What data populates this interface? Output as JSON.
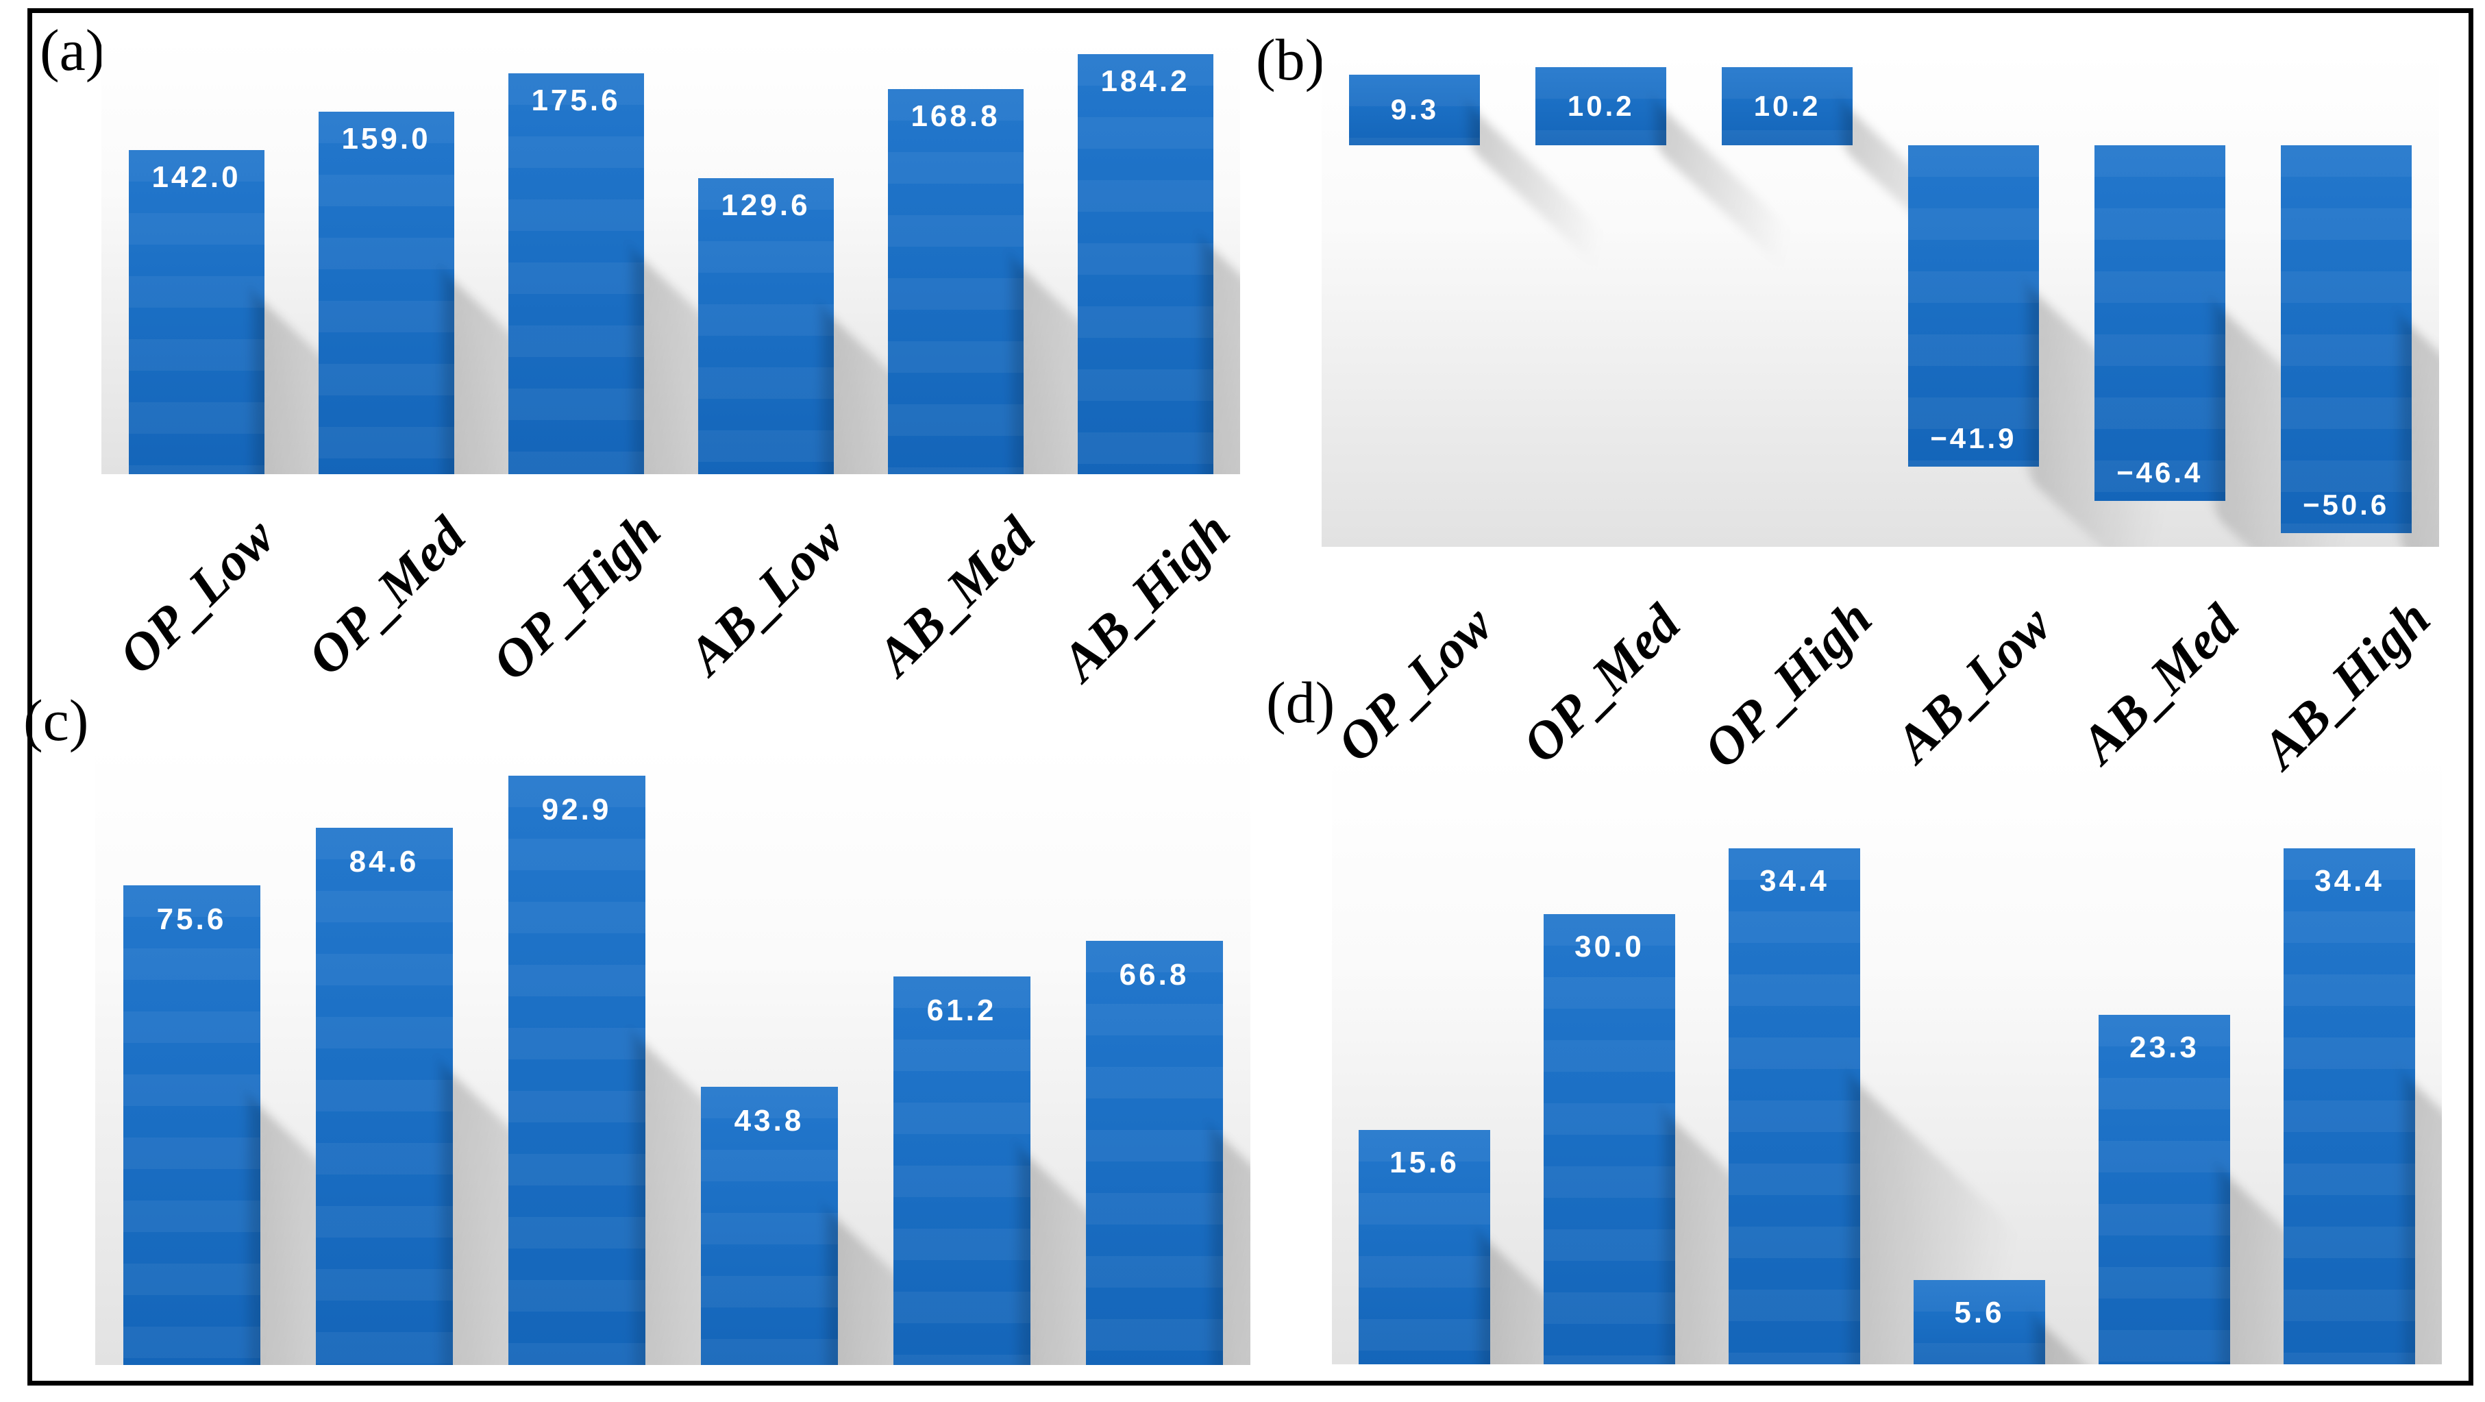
{
  "figure": {
    "panel_labels": [
      "(a)",
      "(b)",
      "(c)",
      "(d)"
    ],
    "bar_color": "#1b6fc4",
    "value_label_color": "#ffffff",
    "plot_background_top": "#ffffff",
    "plot_background_bottom": "#e2e2e2",
    "frame_color": "#000000"
  },
  "chart_data": [
    {
      "id": "a",
      "type": "bar",
      "panel_label": "(a)",
      "categories": [
        "OP_Low",
        "OP_Med",
        "OP_High",
        "AB_Low",
        "AB_Med",
        "AB_High"
      ],
      "categories_visible": true,
      "values": [
        142.0,
        159.0,
        175.6,
        129.6,
        168.8,
        184.2
      ],
      "value_labels": [
        "142.0",
        "159.0",
        "175.6",
        "129.6",
        "168.8",
        "184.2"
      ],
      "ylim": [
        0,
        190.7
      ],
      "grid": false,
      "legend": "none"
    },
    {
      "id": "b",
      "type": "bar",
      "panel_label": "(b)",
      "categories": [
        "OP_Low",
        "OP_Med",
        "OP_High",
        "AB_Low",
        "AB_Med",
        "AB_High"
      ],
      "categories_visible": true,
      "values": [
        9.3,
        10.2,
        10.2,
        -41.9,
        -46.4,
        -50.6
      ],
      "value_labels": [
        "9.3",
        "10.2",
        "10.2",
        "−41.9",
        "−46.4",
        "−50.6"
      ],
      "ylim": [
        -52.4,
        12.3
      ],
      "grid": false,
      "legend": "none"
    },
    {
      "id": "c",
      "type": "bar",
      "panel_label": "(c)",
      "categories": [],
      "categories_visible": false,
      "values": [
        75.6,
        84.6,
        92.9,
        43.8,
        61.2,
        66.8
      ],
      "value_labels": [
        "75.6",
        "84.6",
        "92.9",
        "43.8",
        "61.2",
        "66.8"
      ],
      "ylim": [
        0,
        97.6
      ],
      "grid": false,
      "legend": "none"
    },
    {
      "id": "d",
      "type": "bar",
      "panel_label": "(d)",
      "categories": [],
      "categories_visible": false,
      "values": [
        15.6,
        30.0,
        34.4,
        5.6,
        23.3,
        34.4
      ],
      "value_labels": [
        "15.6",
        "30.0",
        "34.4",
        "5.6",
        "23.3",
        "34.4"
      ],
      "ylim": [
        0,
        40.7
      ],
      "grid": false,
      "legend": "none"
    }
  ]
}
